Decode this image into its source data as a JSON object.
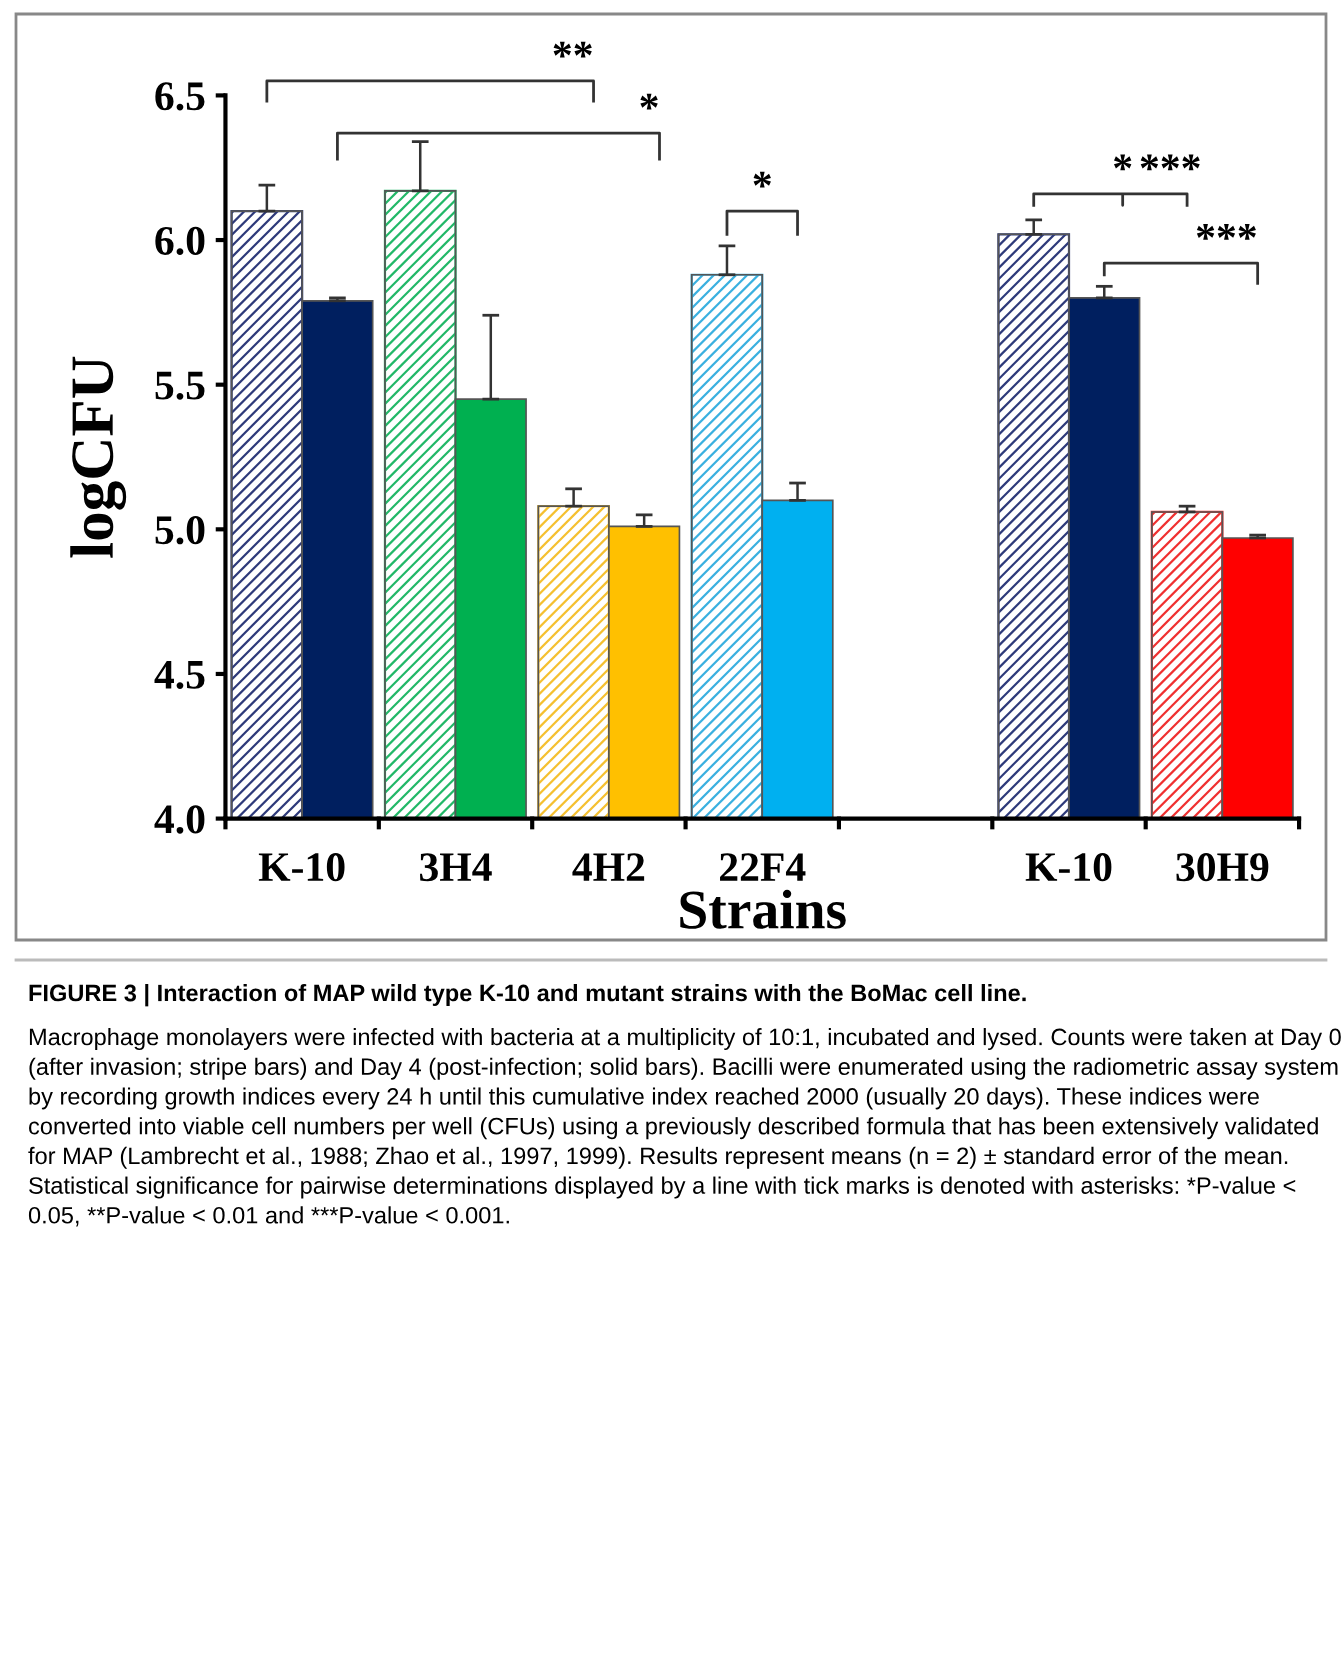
{
  "chart_data": {
    "type": "bar",
    "xlabel": "Strains",
    "ylabel": "logCFU",
    "categories": [
      "K-10",
      "3H4",
      "4H2",
      "22F4",
      null,
      "K-10",
      "30H9"
    ],
    "series": [
      {
        "colors": [
          "#2e3a7a",
          "#22b868",
          "#f5c030",
          "#3ab0e0",
          null,
          "#2e3a7a",
          "#f03030"
        ],
        "values": [
          6.1,
          6.17,
          5.08,
          5.88,
          null,
          6.02,
          5.06
        ],
        "errors": [
          0.09,
          0.17,
          0.06,
          0.1,
          null,
          0.05,
          0.02
        ]
      },
      {
        "colors": [
          "#001f5f",
          "#00b050",
          "#ffc000",
          "#00b0f0",
          null,
          "#001f5f",
          "#ff0000"
        ],
        "values": [
          5.79,
          5.45,
          5.01,
          5.1,
          null,
          5.8,
          4.97
        ],
        "errors": [
          0.01,
          0.29,
          0.04,
          0.06,
          null,
          0.04,
          0.01
        ]
      }
    ],
    "ylim": [
      4.0,
      6.5
    ],
    "yticks": [
      {
        "value": 4.0,
        "label": "4.0"
      },
      {
        "value": 4.5,
        "label": "4.5"
      },
      {
        "value": 5.0,
        "label": "5.0"
      },
      {
        "value": 5.5,
        "label": "5.5"
      },
      {
        "value": 6.0,
        "label": "6.0"
      },
      {
        "value": 6.5,
        "label": "6.5"
      }
    ],
    "grid": false,
    "legend": false,
    "annotations": [
      "**",
      "*",
      "*",
      "*",
      "***",
      "***",
      "FIGURE 3 | Interaction of MAP wild type K-10 and mutant strains with the BoMac cell line.",
      "Macrophage monolayers were infected with bacteria at a multiplicity of 10:1, incubated and lysed. Counts were taken at Day 0 (after invasion; stripe bars) and Day 4 (post-infection; solid bars). Bacilli were enumerated using the radiometric assay system by recording growth indices every 24 h until this cumulative index reached 2000 (usually 20 days). These indices were converted into viable cell numbers per well (CFUs) using a previously described formula that has been extensively validated for MAP (Lambrecht et al., 1988; Zhao et al., 1997, 1999). Results represent means (n = 2) ± standard error of the mean. Statistical significance for pairwise determinations displayed by a line with tick marks is denoted with asterisks: *P-value < 0.05, **P-value < 0.01 and ***P-value < 0.001."
    ]
  }
}
